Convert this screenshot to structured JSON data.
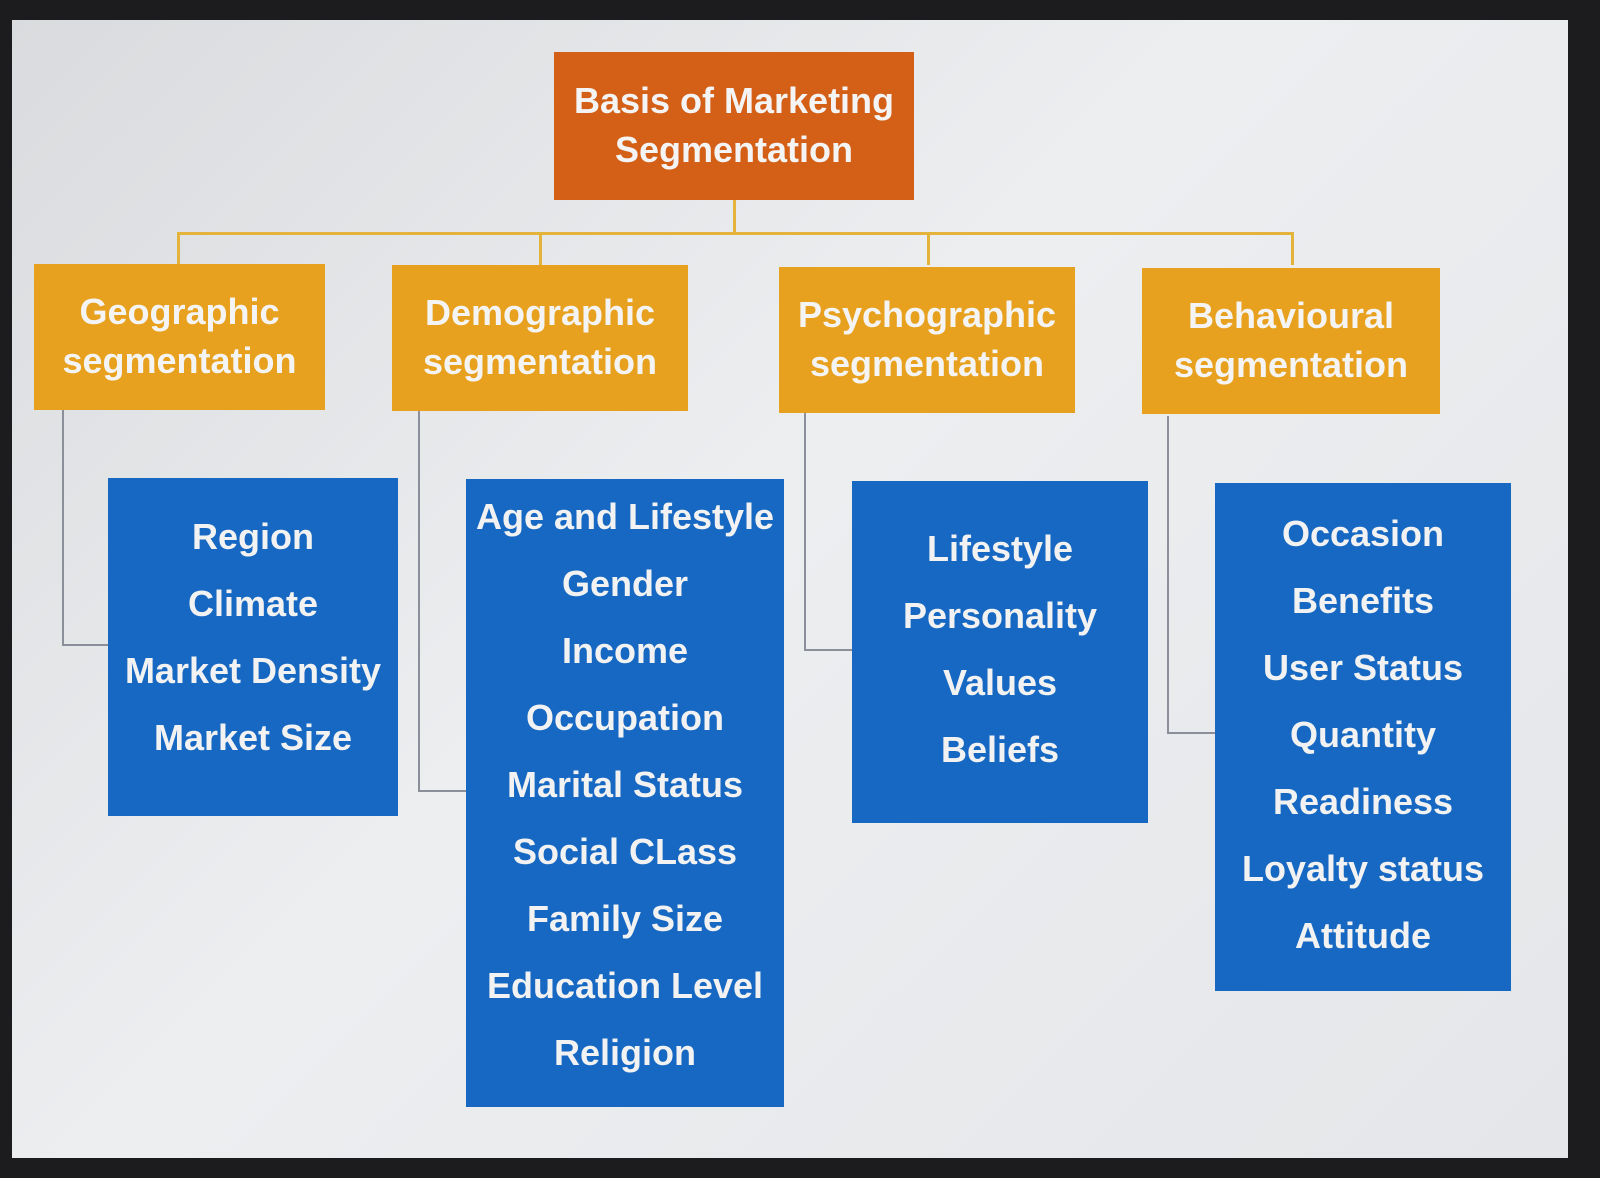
{
  "root": {
    "line1": "Basis of Marketing",
    "line2": "Segmentation"
  },
  "categories": [
    {
      "line1": "Geographic",
      "line2": "segmentation",
      "items": [
        "Region",
        "Climate",
        "Market Density",
        "Market Size"
      ]
    },
    {
      "line1": "Demographic",
      "line2": "segmentation",
      "items": [
        "Age and Lifestyle",
        "Gender",
        "Income",
        "Occupation",
        "Marital Status",
        "Social CLass",
        "Family Size",
        "Education Level",
        "Religion"
      ]
    },
    {
      "line1": "Psychographic",
      "line2": "segmentation",
      "items": [
        "Lifestyle",
        "Personality",
        "Values",
        "Beliefs"
      ]
    },
    {
      "line1": "Behavioural",
      "line2": "segmentation",
      "items": [
        "Occasion",
        "Benefits",
        "User Status",
        "Quantity",
        "Readiness",
        "Loyalty status",
        "Attitude"
      ]
    }
  ],
  "colors": {
    "root": "#d45f16",
    "category": "#e8a11e",
    "list": "#1668c2",
    "connector": "#e3b33c"
  }
}
